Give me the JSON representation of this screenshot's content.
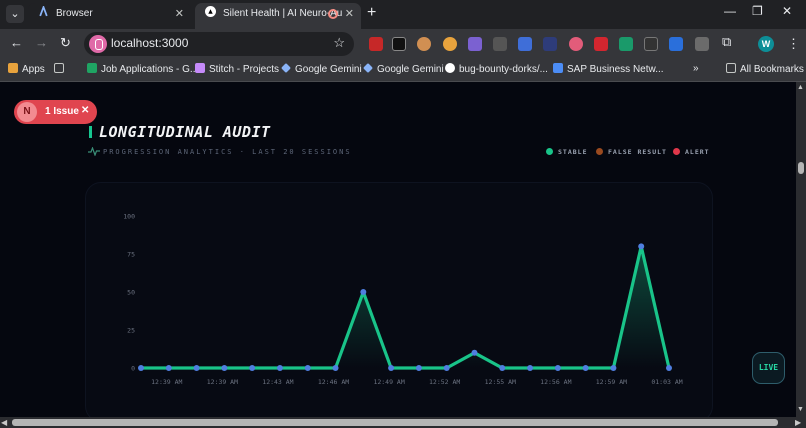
{
  "browser": {
    "tabs": [
      {
        "title": "Browser",
        "active": false
      },
      {
        "title": "Silent Health | AI Neuro-Au",
        "active": true
      }
    ],
    "url": "localhost:3000",
    "profile_initial": "W",
    "bookmarks": [
      {
        "label": "Apps"
      },
      {
        "label": "Job Applications - G..."
      },
      {
        "label": "Stitch - Projects"
      },
      {
        "label": "Google Gemini"
      },
      {
        "label": "Google Gemini"
      },
      {
        "label": "bug-bounty-dorks/..."
      },
      {
        "label": "SAP Business Netw..."
      },
      {
        "label": "All Bookmarks"
      }
    ]
  },
  "dev_overlay": {
    "badge_letter": "N",
    "label": "1 Issue"
  },
  "header": {
    "title": "LONGITUDINAL AUDIT",
    "subtitle": "PROGRESSION ANALYTICS · LAST 20 SESSIONS"
  },
  "legend": [
    {
      "label": "STABLE",
      "color": "#19c489"
    },
    {
      "label": "FALSE RESULT",
      "color": "#9a4a1f"
    },
    {
      "label": "ALERT",
      "color": "#e0374a"
    }
  ],
  "live_button": {
    "label": "LIVE"
  },
  "colors": {
    "accent": "#19c489",
    "point": "#4f7fe0",
    "background": "#05070f"
  },
  "chart_data": {
    "type": "line",
    "title": "LONGITUDINAL AUDIT",
    "ylim": [
      0,
      100
    ],
    "yticks": [
      0,
      25,
      50,
      75,
      100
    ],
    "grid": false,
    "x_tick_labels": [
      "12:39 AM",
      "12:39 AM",
      "12:43 AM",
      "12:46 AM",
      "12:49 AM",
      "12:52 AM",
      "12:55 AM",
      "12:56 AM",
      "12:59 AM",
      "01:03 AM"
    ],
    "series": [
      {
        "values": [
          0,
          0,
          0,
          0,
          0,
          0,
          0,
          0,
          50,
          0,
          0,
          0,
          10,
          0,
          0,
          0,
          0,
          0,
          80,
          0
        ]
      }
    ]
  }
}
